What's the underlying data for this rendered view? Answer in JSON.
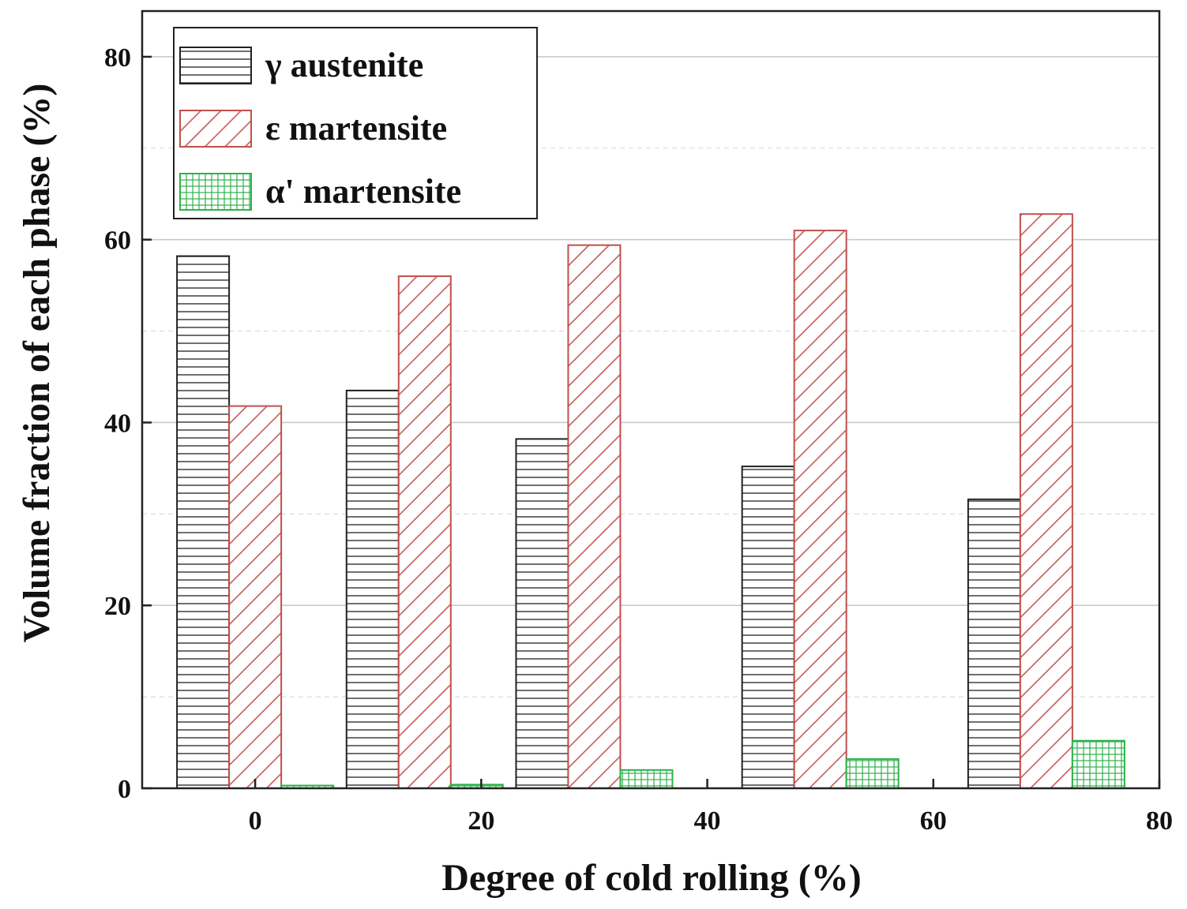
{
  "chart_data": {
    "type": "bar",
    "title": "",
    "xlabel": "Degree of cold rolling (%)",
    "ylabel": "Volume fraction of each phase (%)",
    "xlim": [
      -10,
      80
    ],
    "ylim": [
      0,
      85
    ],
    "xticks": [
      0,
      20,
      40,
      60,
      80
    ],
    "yticks": [
      0,
      20,
      40,
      60,
      80
    ],
    "grid": true,
    "legend_position": "top-left",
    "categories": [
      0,
      15,
      30,
      50,
      70
    ],
    "series": [
      {
        "name": "γ austenite",
        "key": "gamma",
        "values": [
          58.2,
          43.5,
          38.2,
          35.2,
          31.6
        ],
        "color": "#222222",
        "pattern": "horizontal-lines"
      },
      {
        "name": "ε martensite",
        "key": "epsilon",
        "values": [
          41.8,
          56.0,
          59.4,
          61.0,
          62.8
        ],
        "color": "#c0504d",
        "pattern": "diagonal-hatch"
      },
      {
        "name": "α' martensite",
        "key": "alpha",
        "values": [
          0.3,
          0.4,
          2.0,
          3.2,
          5.2
        ],
        "color": "#2db24a",
        "pattern": "grid"
      }
    ]
  }
}
